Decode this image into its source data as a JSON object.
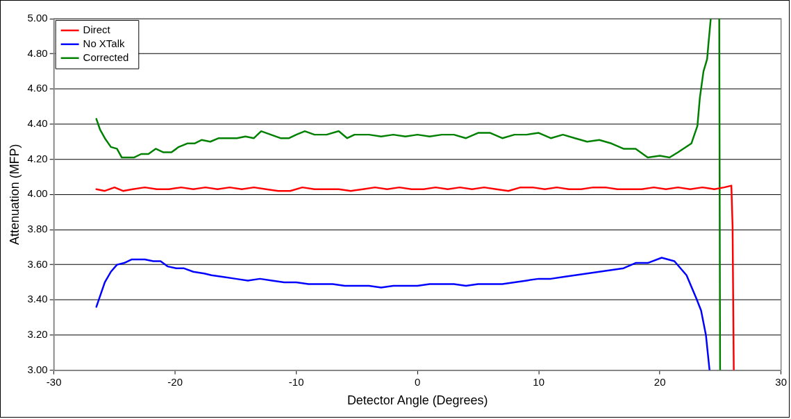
{
  "chart_data": {
    "type": "line",
    "xlabel": "Detector Angle (Degrees)",
    "ylabel": "Attenuation (MFP)",
    "xlim": [
      -30,
      30
    ],
    "xticks": [
      -30,
      -20,
      -10,
      0,
      10,
      20,
      30
    ],
    "ylim": [
      3,
      5
    ],
    "yticks": [
      {
        "value": 3,
        "label": "3.00"
      },
      {
        "value": 3.2,
        "label": "3.20"
      },
      {
        "value": 3.4,
        "label": "3.40"
      },
      {
        "value": 3.6,
        "label": "3.60"
      },
      {
        "value": 3.8,
        "label": "3.80"
      },
      {
        "value": 4,
        "label": "4.00"
      },
      {
        "value": 4.2,
        "label": "4.20"
      },
      {
        "value": 4.4,
        "label": "4.40"
      },
      {
        "value": 4.6,
        "label": "4.60"
      },
      {
        "value": 4.8,
        "label": "4.80"
      },
      {
        "value": 5,
        "label": "5.00"
      }
    ],
    "grid": "y",
    "legend": "top left",
    "marker": "none",
    "line_style": "solid",
    "series": [
      {
        "name": "Direct",
        "color": "#ff0000",
        "x": [
          -26.5,
          -25.8,
          -25,
          -24.3,
          -23.5,
          -22.5,
          -21.5,
          -20.5,
          -19.5,
          -18.5,
          -17.5,
          -16.5,
          -15.5,
          -14.5,
          -13.5,
          -12.5,
          -11.5,
          -10.5,
          -9.5,
          -8.5,
          -7.5,
          -6.5,
          -5.5,
          -4.5,
          -3.5,
          -2.5,
          -1.5,
          -0.5,
          0.5,
          1.5,
          2.5,
          3.5,
          4.5,
          5.5,
          6.5,
          7.5,
          8.5,
          9.5,
          10.5,
          11.5,
          12.5,
          13.5,
          14.5,
          15.5,
          16.5,
          17.5,
          18.5,
          19.5,
          20.5,
          21.5,
          22.5,
          23.5,
          24.5,
          25.3,
          25.9,
          26.0,
          26.05,
          26.1
        ],
        "values": [
          4.03,
          4.02,
          4.04,
          4.02,
          4.03,
          4.04,
          4.03,
          4.03,
          4.04,
          4.03,
          4.04,
          4.03,
          4.04,
          4.03,
          4.04,
          4.03,
          4.02,
          4.02,
          4.04,
          4.03,
          4.03,
          4.03,
          4.02,
          4.03,
          4.04,
          4.03,
          4.04,
          4.03,
          4.03,
          4.04,
          4.03,
          4.04,
          4.03,
          4.04,
          4.03,
          4.02,
          4.04,
          4.04,
          4.03,
          4.04,
          4.03,
          4.03,
          4.04,
          4.04,
          4.03,
          4.03,
          4.03,
          4.04,
          4.03,
          4.04,
          4.03,
          4.04,
          4.03,
          4.04,
          4.05,
          3.82,
          3.4,
          3.0
        ]
      },
      {
        "name": "No XTalk",
        "color": "#0000ff",
        "x": [
          -26.5,
          -26.2,
          -25.8,
          -25.3,
          -24.8,
          -24.2,
          -23.6,
          -22.5,
          -21.8,
          -21.2,
          -20.6,
          -19.9,
          -19.3,
          -18.5,
          -17.6,
          -17,
          -16,
          -15,
          -14,
          -13,
          -12,
          -11,
          -10,
          -9,
          -8,
          -7,
          -6,
          -5,
          -4,
          -3,
          -2,
          -1,
          0,
          1,
          2,
          3,
          4,
          5,
          6,
          7,
          8,
          9,
          10,
          11,
          12,
          13,
          14,
          15,
          16,
          17,
          18,
          19,
          20.15,
          21.2,
          22.2,
          23,
          23.4,
          23.8,
          24.1
        ],
        "values": [
          3.36,
          3.42,
          3.5,
          3.56,
          3.6,
          3.61,
          3.63,
          3.63,
          3.62,
          3.62,
          3.59,
          3.58,
          3.58,
          3.56,
          3.55,
          3.54,
          3.53,
          3.52,
          3.51,
          3.52,
          3.51,
          3.5,
          3.5,
          3.49,
          3.49,
          3.49,
          3.48,
          3.48,
          3.48,
          3.47,
          3.48,
          3.48,
          3.48,
          3.49,
          3.49,
          3.49,
          3.48,
          3.49,
          3.49,
          3.49,
          3.5,
          3.51,
          3.52,
          3.52,
          3.53,
          3.54,
          3.55,
          3.56,
          3.57,
          3.58,
          3.61,
          3.61,
          3.64,
          3.62,
          3.54,
          3.41,
          3.34,
          3.2,
          3.0
        ]
      },
      {
        "name": "Corrected",
        "color": "#008000",
        "x": [
          -26.5,
          -26.2,
          -25.8,
          -25.3,
          -24.8,
          -24.4,
          -23.9,
          -23.4,
          -22.8,
          -22.2,
          -21.6,
          -21,
          -20.3,
          -19.7,
          -19,
          -18.4,
          -17.8,
          -17.1,
          -16.4,
          -15.6,
          -14.9,
          -14.2,
          -13.5,
          -12.9,
          -12.1,
          -11.3,
          -10.6,
          -10,
          -9.3,
          -8.5,
          -7.5,
          -6.5,
          -5.8,
          -5.2,
          -4,
          -3,
          -2,
          -1,
          0,
          1,
          2,
          3,
          4,
          5,
          6,
          7,
          8,
          9,
          10,
          11,
          12,
          13,
          14,
          15,
          16,
          17,
          18,
          19,
          20,
          20.8,
          21.5,
          22.6,
          23.1,
          23.3,
          23.6,
          23.9,
          24,
          24.2,
          24.6,
          24.9,
          24.97
        ],
        "values": [
          4.43,
          4.37,
          4.32,
          4.27,
          4.26,
          4.21,
          4.21,
          4.21,
          4.23,
          4.23,
          4.26,
          4.24,
          4.24,
          4.27,
          4.29,
          4.29,
          4.31,
          4.3,
          4.32,
          4.32,
          4.32,
          4.33,
          4.32,
          4.36,
          4.34,
          4.32,
          4.32,
          4.34,
          4.36,
          4.34,
          4.34,
          4.36,
          4.32,
          4.34,
          4.34,
          4.33,
          4.34,
          4.33,
          4.34,
          4.33,
          4.34,
          4.34,
          4.32,
          4.35,
          4.35,
          4.32,
          4.34,
          4.34,
          4.35,
          4.32,
          4.34,
          4.32,
          4.3,
          4.31,
          4.29,
          4.26,
          4.26,
          4.21,
          4.22,
          4.21,
          4.24,
          4.29,
          4.39,
          4.55,
          4.7,
          4.77,
          4.85,
          5.0,
          null,
          5.0,
          3.0
        ]
      }
    ]
  }
}
